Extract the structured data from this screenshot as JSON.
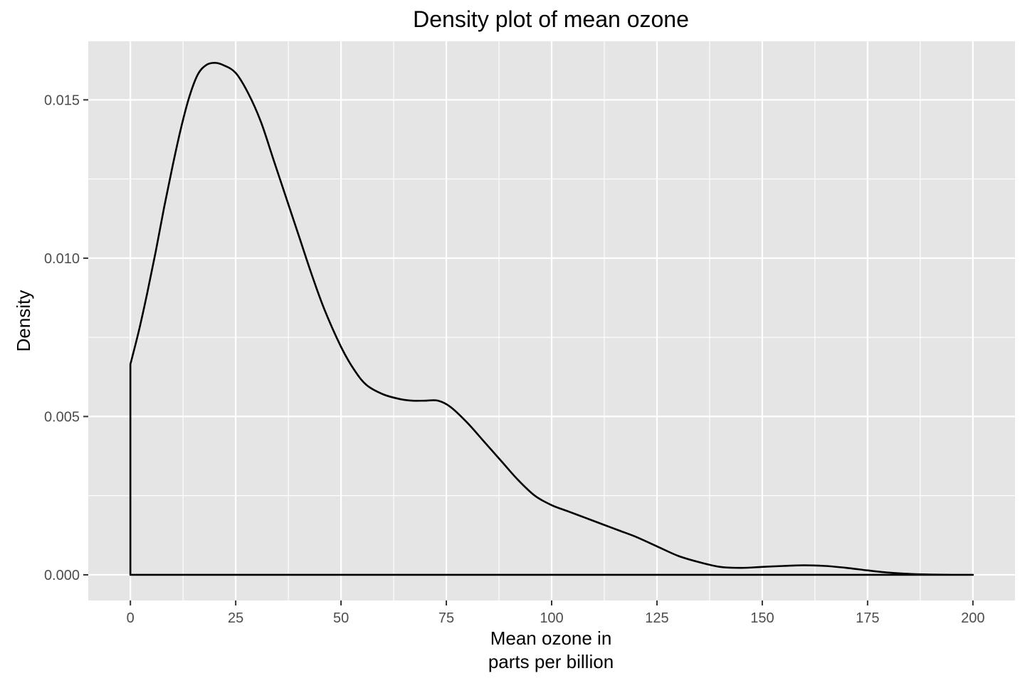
{
  "chart_data": {
    "type": "area",
    "title": "Density plot of mean ozone",
    "xlabel_lines": [
      "Mean ozone in",
      "parts per billion"
    ],
    "ylabel": "Density",
    "xlim": [
      -10,
      210
    ],
    "ylim": [
      -0.00081,
      0.01685
    ],
    "x_ticks": [
      0,
      25,
      50,
      75,
      100,
      125,
      150,
      175,
      200
    ],
    "x_tick_labels": [
      "0",
      "25",
      "50",
      "75",
      "100",
      "125",
      "150",
      "175",
      "200"
    ],
    "y_ticks": [
      0,
      0.005,
      0.01,
      0.015
    ],
    "y_tick_labels": [
      "0.000",
      "0.005",
      "0.010",
      "0.015"
    ],
    "grid": true,
    "background": "#e5e5e5",
    "grid_color": "#ffffff",
    "line_color": "#000000",
    "fill": "none",
    "series": [
      {
        "x": [
          0,
          2,
          4,
          6,
          8,
          10,
          12,
          14,
          16,
          18,
          20,
          22,
          25,
          28,
          31,
          34,
          37,
          40,
          43,
          46,
          50,
          53,
          56,
          60,
          64,
          67,
          70,
          73,
          76,
          80,
          84,
          88,
          92,
          96,
          100,
          104,
          108,
          112,
          116,
          120,
          125,
          130,
          135,
          140,
          145,
          150,
          155,
          160,
          165,
          170,
          175,
          180,
          185,
          190,
          195,
          200
        ],
        "y": [
          0.00665,
          0.0077,
          0.0089,
          0.0102,
          0.0116,
          0.0129,
          0.0141,
          0.0151,
          0.0158,
          0.0161,
          0.01617,
          0.0161,
          0.01585,
          0.0152,
          0.0143,
          0.0131,
          0.0119,
          0.0107,
          0.0095,
          0.0084,
          0.0072,
          0.0065,
          0.006,
          0.0057,
          0.00555,
          0.0055,
          0.0055,
          0.0055,
          0.0053,
          0.0048,
          0.0042,
          0.0036,
          0.003,
          0.0025,
          0.0022,
          0.002,
          0.0018,
          0.0016,
          0.0014,
          0.0012,
          0.0009,
          0.0006,
          0.0004,
          0.00025,
          0.00022,
          0.00025,
          0.00028,
          0.0003,
          0.00028,
          0.00022,
          0.00014,
          7e-05,
          3e-05,
          1e-05,
          0.0,
          0.0
        ]
      }
    ]
  }
}
